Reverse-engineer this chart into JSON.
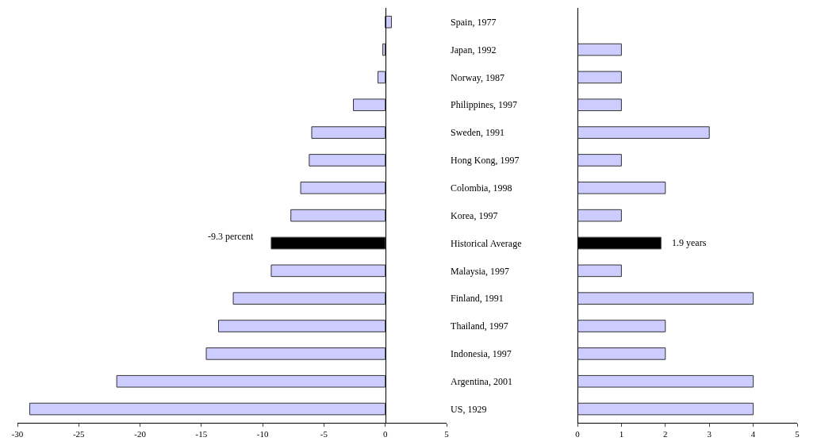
{
  "chart_data": [
    {
      "type": "bar",
      "orientation": "horizontal",
      "categories": [
        "Spain, 1977",
        "Japan, 1992",
        "Norway, 1987",
        "Philippines, 1997",
        "Sweden, 1991",
        "Hong Kong, 1997",
        "Colombia, 1998",
        "Korea, 1997",
        "Historical Average",
        "Malaysia, 1997",
        "Finland, 1991",
        "Thailand, 1997",
        "Indonesia, 1997",
        "Argentina, 2001",
        "US, 1929"
      ],
      "values": [
        0.5,
        -0.2,
        -0.6,
        -2.6,
        -6.0,
        -6.2,
        -6.9,
        -7.7,
        -9.3,
        -9.3,
        -12.4,
        -13.6,
        -14.6,
        -21.9,
        -29.0
      ],
      "colors": [
        "#ccccff",
        "#ccccff",
        "#ccccff",
        "#ccccff",
        "#ccccff",
        "#ccccff",
        "#ccccff",
        "#ccccff",
        "#000000",
        "#ccccff",
        "#ccccff",
        "#ccccff",
        "#ccccff",
        "#ccccff",
        "#ccccff"
      ],
      "xlim": [
        -30,
        5
      ],
      "xticks": [
        -30,
        -25,
        -20,
        -15,
        -10,
        -5,
        0,
        5
      ],
      "annotations": [
        {
          "text": "-9.3 percent",
          "x": -9.3,
          "y": "Historical Average"
        }
      ]
    },
    {
      "type": "bar",
      "orientation": "horizontal",
      "categories": [
        "Spain, 1977",
        "Japan, 1992",
        "Norway, 1987",
        "Philippines, 1997",
        "Sweden, 1991",
        "Hong Kong, 1997",
        "Colombia, 1998",
        "Korea, 1997",
        "Historical Average",
        "Malaysia, 1997",
        "Finland, 1991",
        "Thailand, 1997",
        "Indonesia, 1997",
        "Argentina, 2001",
        "US, 1929"
      ],
      "values": [
        null,
        1,
        1,
        1,
        3,
        1,
        2,
        1,
        1.9,
        1,
        4,
        2,
        2,
        4,
        4
      ],
      "colors": [
        "#ccccff",
        "#ccccff",
        "#ccccff",
        "#ccccff",
        "#ccccff",
        "#ccccff",
        "#ccccff",
        "#ccccff",
        "#000000",
        "#ccccff",
        "#ccccff",
        "#ccccff",
        "#ccccff",
        "#ccccff",
        "#ccccff"
      ],
      "xlim": [
        0,
        5
      ],
      "xticks": [
        0,
        1,
        2,
        3,
        4,
        5
      ],
      "annotations": [
        {
          "text": "1.9 years",
          "x": 1.9,
          "y": "Historical Average"
        }
      ],
      "tick_labels": "x"
    }
  ]
}
